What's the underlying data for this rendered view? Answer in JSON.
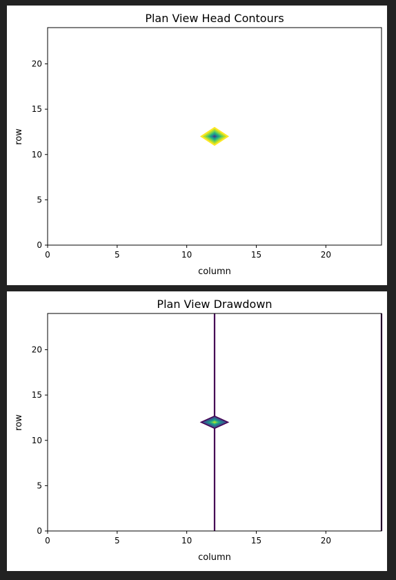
{
  "toolbar": {
    "icon": "bar-chart-icon"
  },
  "chart_data": [
    {
      "type": "contour",
      "title": "Plan View Head Contours",
      "xlabel": "column",
      "ylabel": "row",
      "xlim": [
        0,
        24
      ],
      "ylim": [
        0,
        24
      ],
      "xticks": [
        "0",
        "5",
        "10",
        "15",
        "20"
      ],
      "yticks": [
        "0",
        "5",
        "10",
        "15",
        "20"
      ],
      "grid": false,
      "colormap": "viridis",
      "feature": {
        "shape": "diamond",
        "center": [
          12,
          12
        ],
        "half_width": 1,
        "half_height": 1,
        "levels": [
          {
            "scale": 1.0,
            "color": "#fde725"
          },
          {
            "scale": 0.8,
            "color": "#b5de2b"
          },
          {
            "scale": 0.62,
            "color": "#6ece58"
          },
          {
            "scale": 0.46,
            "color": "#35b779"
          },
          {
            "scale": 0.32,
            "color": "#1f9e89"
          },
          {
            "scale": 0.2,
            "color": "#26828e"
          },
          {
            "scale": 0.1,
            "color": "#3e4989"
          }
        ]
      }
    },
    {
      "type": "contour",
      "title": "Plan View Drawdown",
      "xlabel": "column",
      "ylabel": "row",
      "xlim": [
        0,
        24
      ],
      "ylim": [
        0,
        24
      ],
      "xticks": [
        "0",
        "5",
        "10",
        "15",
        "20"
      ],
      "yticks": [
        "0",
        "5",
        "10",
        "15",
        "20"
      ],
      "grid": false,
      "colormap": "viridis",
      "lines": [
        {
          "x": 12,
          "y0": 0,
          "y1": 24,
          "color": "#440154"
        },
        {
          "x": 24,
          "y0": 0,
          "y1": 24,
          "color": "#440154"
        }
      ],
      "feature": {
        "shape": "diamond",
        "center": [
          12,
          12
        ],
        "half_width": 1,
        "half_height": 0.7,
        "levels": [
          {
            "scale": 1.0,
            "color": "#440154"
          },
          {
            "scale": 0.82,
            "color": "#3b528b"
          },
          {
            "scale": 0.64,
            "color": "#2c728e"
          },
          {
            "scale": 0.48,
            "color": "#21918c"
          },
          {
            "scale": 0.34,
            "color": "#28ae80"
          },
          {
            "scale": 0.2,
            "color": "#5ec962"
          },
          {
            "scale": 0.08,
            "color": "#addc30"
          }
        ]
      }
    }
  ]
}
